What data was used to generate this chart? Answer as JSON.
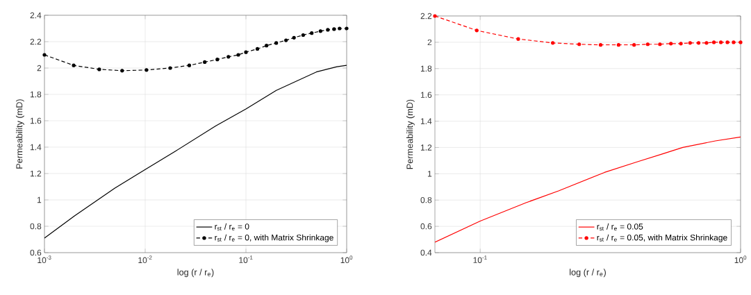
{
  "chart_data": [
    {
      "type": "line",
      "xlabel": "log (r / r$_{e}$)",
      "ylabel": "Permeability (mD)",
      "log": "x",
      "grid": true,
      "legend": "bottom right",
      "xlim": [
        0.001,
        1
      ],
      "ylim": [
        0.6,
        2.4
      ],
      "xticks": [
        {
          "value": 0.001,
          "label": "10$^{-3}$"
        },
        {
          "value": 0.01,
          "label": "10$^{-2}$"
        },
        {
          "value": 0.1,
          "label": "10$^{-1}$"
        },
        {
          "value": 1,
          "label": "10$^{0}$"
        }
      ],
      "yticks": [
        0.6,
        0.8,
        1,
        1.2,
        1.4,
        1.6,
        1.8,
        2,
        2.2,
        2.4
      ],
      "series": [
        {
          "name": "r$_{st}$ / r$_{e}$ = 0",
          "color": "#000000",
          "line_style": "solid",
          "marker": "none",
          "x": [
            0.001,
            0.002,
            0.005,
            0.01,
            0.02,
            0.05,
            0.1,
            0.2,
            0.5,
            0.8,
            1
          ],
          "values": [
            0.71,
            0.88,
            1.09,
            1.23,
            1.37,
            1.56,
            1.69,
            1.83,
            1.97,
            2.01,
            2.02
          ]
        },
        {
          "name": "r$_{st}$ / r$_{e}$ = 0, with Matrix Shrinkage",
          "color": "#000000",
          "line_style": "dashed",
          "marker": "circle",
          "x": [
            0.001,
            0.00195,
            0.0035,
            0.0059,
            0.0103,
            0.0177,
            0.0274,
            0.039,
            0.052,
            0.067,
            0.084,
            0.1,
            0.13,
            0.16,
            0.2,
            0.25,
            0.3,
            0.37,
            0.45,
            0.55,
            0.65,
            0.75,
            0.85,
            1
          ],
          "values": [
            2.1,
            2.02,
            1.99,
            1.98,
            1.985,
            2.0,
            2.02,
            2.045,
            2.065,
            2.085,
            2.1,
            2.12,
            2.145,
            2.17,
            2.19,
            2.21,
            2.23,
            2.25,
            2.265,
            2.28,
            2.29,
            2.295,
            2.3,
            2.3
          ]
        }
      ]
    },
    {
      "type": "line",
      "xlabel": "log (r / r$_{e}$)",
      "ylabel": "Permeability (mD)",
      "log": "x",
      "grid": true,
      "legend": "bottom right",
      "xlim": [
        0.067,
        1
      ],
      "ylim": [
        0.4,
        2.2
      ],
      "xticks": [
        {
          "value": 0.1,
          "label": "10$^{-1}$"
        },
        {
          "value": 1,
          "label": "10$^{0}$"
        }
      ],
      "yticks": [
        0.4,
        0.6,
        0.8,
        1,
        1.2,
        1.4,
        1.6,
        1.8,
        2,
        2.2
      ],
      "series": [
        {
          "name": "r$_{st}$ / r$_{e}$ = 0.05",
          "color": "#ff0000",
          "line_style": "solid",
          "marker": "none",
          "x": [
            0.067,
            0.1,
            0.15,
            0.2,
            0.3,
            0.4,
            0.5,
            0.6,
            0.8,
            1
          ],
          "values": [
            0.48,
            0.64,
            0.78,
            0.87,
            1.01,
            1.09,
            1.15,
            1.2,
            1.25,
            1.28
          ]
        },
        {
          "name": "r$_{st}$ / r$_{e}$ = 0.05, with Matrix Shrinkage",
          "color": "#ff0000",
          "line_style": "dashed",
          "marker": "circle",
          "x": [
            0.067,
            0.097,
            0.14,
            0.19,
            0.24,
            0.29,
            0.34,
            0.39,
            0.44,
            0.49,
            0.54,
            0.59,
            0.64,
            0.69,
            0.74,
            0.79,
            0.84,
            0.89,
            0.94,
            1
          ],
          "values": [
            2.2,
            2.09,
            2.025,
            1.995,
            1.985,
            1.98,
            1.98,
            1.98,
            1.985,
            1.985,
            1.99,
            1.99,
            1.995,
            1.995,
            1.995,
            2.0,
            2.0,
            2.0,
            2.0,
            2.0
          ]
        }
      ]
    }
  ]
}
